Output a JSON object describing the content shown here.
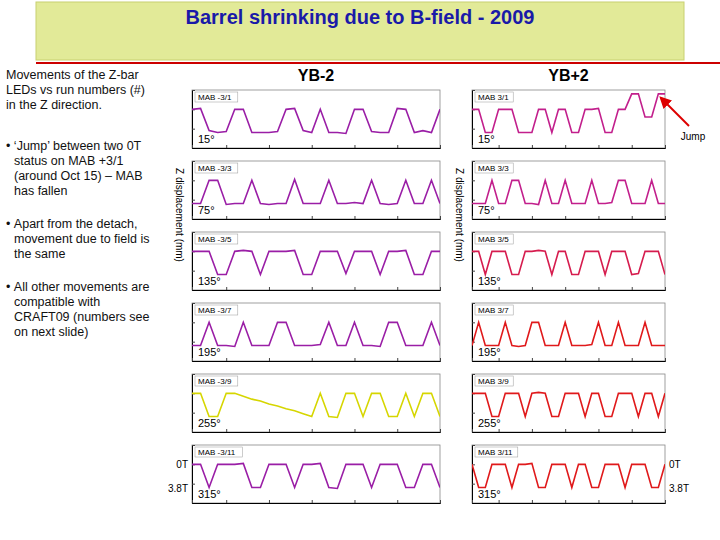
{
  "title": "Barrel shrinking due to B-field - 2009",
  "notes": {
    "intro": "Movements of the Z-bar LEDs vs run numbers (#) in the Z direction.",
    "bullets": [
      "‘Jump’ between two 0T status on MAB +3/1 (around Oct 15) – MAB has fallen",
      "Apart from the detach, movement due to field is the same",
      "All other movements are compatible with CRAFT09 (numbers see on next slide)"
    ]
  },
  "columns": [
    {
      "label": "YB-2",
      "ylabel": "Z displacement (mm)"
    },
    {
      "label": "YB+2",
      "ylabel": "Z displacement (mm)"
    }
  ],
  "field_levels": [
    {
      "value": 0,
      "label": "0T"
    },
    {
      "value": -1.2,
      "label": "3.8T"
    }
  ],
  "jump_label": "Jump",
  "chart_data": [
    {
      "type": "line",
      "title": "MAB -3/1",
      "annotation": "15°",
      "color": "#9a1ea6",
      "x": [
        1,
        2,
        3,
        4,
        5,
        6,
        7,
        8,
        9,
        10,
        11,
        12,
        13,
        14,
        15,
        16,
        17,
        18,
        19,
        20,
        21,
        22,
        23,
        24,
        25,
        26,
        27,
        28,
        29,
        30
      ],
      "values": [
        0,
        0.05,
        -1.1,
        -1.2,
        -1.15,
        0,
        0,
        -1.2,
        -1.2,
        -1.2,
        -1.15,
        0,
        0.05,
        -1.1,
        -1.2,
        0,
        -1.2,
        -1.2,
        -1.25,
        0,
        0,
        -1.15,
        -1.2,
        -1.2,
        0.05,
        0,
        -1.2,
        -1.1,
        -1.2,
        0
      ],
      "xlim": [
        1,
        30
      ],
      "ylim": [
        -2,
        1
      ],
      "xticks": [
        1,
        5,
        10,
        15,
        20,
        25,
        30
      ],
      "yticks": [
        -2,
        -1,
        0,
        1
      ],
      "tick_labels": false
    },
    {
      "type": "line",
      "title": "MAB -3/3",
      "annotation": "75°",
      "color": "#9a1ea6",
      "x": [
        1,
        2,
        3,
        4,
        5,
        6,
        7,
        8,
        9,
        10,
        11,
        12,
        13,
        14,
        15,
        16,
        17,
        18,
        19,
        20,
        21,
        22,
        23,
        24,
        25,
        26,
        27,
        28,
        29,
        30
      ],
      "values": [
        -1.2,
        -1.2,
        0,
        0,
        -1.25,
        -1.2,
        -1.2,
        0,
        -1.2,
        -1.25,
        -1.2,
        -1.2,
        0.05,
        -1.2,
        -1.2,
        -1.2,
        0,
        -1.2,
        -1.2,
        -1.15,
        -1.2,
        0,
        -1.2,
        -1.25,
        -1.2,
        0,
        -1.2,
        -1.2,
        0,
        -1.2
      ],
      "xlim": [
        1,
        30
      ],
      "ylim": [
        -2,
        1
      ],
      "xticks": [
        1,
        5,
        10,
        15,
        20,
        25,
        30
      ],
      "yticks": [
        -2,
        -1,
        0,
        1
      ],
      "tick_labels": false
    },
    {
      "type": "line",
      "title": "MAB -3/5",
      "annotation": "135°",
      "color": "#9a1ea6",
      "x": [
        1,
        2,
        3,
        4,
        5,
        6,
        7,
        8,
        9,
        10,
        11,
        12,
        13,
        14,
        15,
        16,
        17,
        18,
        19,
        20,
        21,
        22,
        23,
        24,
        25,
        26,
        27,
        28,
        29,
        30
      ],
      "values": [
        0,
        0,
        0,
        -1.2,
        -1.2,
        0,
        0.05,
        0,
        -1.2,
        0,
        0,
        0,
        0.05,
        -1.2,
        -1.2,
        0,
        0,
        0,
        -1.15,
        0,
        0,
        0,
        -1.2,
        0,
        0,
        0.05,
        -1.2,
        -1.2,
        0,
        0
      ],
      "xlim": [
        1,
        30
      ],
      "ylim": [
        -2,
        1
      ],
      "xticks": [
        1,
        5,
        10,
        15,
        20,
        25,
        30
      ],
      "yticks": [
        -2,
        -1,
        0,
        1
      ],
      "tick_labels": false
    },
    {
      "type": "line",
      "title": "MAB -3/7",
      "annotation": "195°",
      "color": "#9a1ea6",
      "x": [
        1,
        2,
        3,
        4,
        5,
        6,
        7,
        8,
        9,
        10,
        11,
        12,
        13,
        14,
        15,
        16,
        17,
        18,
        19,
        20,
        21,
        22,
        23,
        24,
        25,
        26,
        27,
        28,
        29,
        30
      ],
      "values": [
        -1.2,
        -1.2,
        0,
        -1.2,
        -1.2,
        -1.25,
        0,
        -1.2,
        -1.2,
        -1.2,
        0,
        0,
        -1.2,
        -1.2,
        -1.2,
        -1.15,
        0,
        -1.2,
        -1.2,
        0,
        -1.2,
        -1.2,
        -1.25,
        0,
        0,
        -1.2,
        -1.2,
        -1.2,
        0,
        -1.2
      ],
      "xlim": [
        1,
        30
      ],
      "ylim": [
        -2,
        1
      ],
      "xticks": [
        1,
        5,
        10,
        15,
        20,
        25,
        30
      ],
      "yticks": [
        -2,
        -1,
        0,
        1
      ],
      "tick_labels": false
    },
    {
      "type": "line",
      "title": "MAB -3/9",
      "annotation": "255°",
      "color": "#d6d600",
      "x": [
        1,
        2,
        3,
        4,
        5,
        6,
        7,
        8,
        9,
        10,
        11,
        12,
        13,
        14,
        15,
        16,
        17,
        18,
        19,
        20,
        21,
        22,
        23,
        24,
        25,
        26,
        27,
        28,
        29,
        30
      ],
      "values": [
        0,
        0,
        -1.2,
        -1.2,
        0,
        0,
        -0.15,
        -0.3,
        -0.4,
        -0.55,
        -0.65,
        -0.8,
        -0.9,
        -1.05,
        -1.2,
        0,
        -1.2,
        -1.25,
        0,
        0,
        -1.2,
        0,
        0,
        -1.2,
        -1.2,
        0,
        -1.2,
        0,
        0,
        -1.2
      ],
      "xlim": [
        1,
        30
      ],
      "ylim": [
        -2,
        1
      ],
      "xticks": [
        1,
        5,
        10,
        15,
        20,
        25,
        30
      ],
      "yticks": [
        -2,
        -1,
        0,
        1
      ],
      "tick_labels": false
    },
    {
      "type": "line",
      "title": "MAB -3/11",
      "annotation": "315°",
      "color": "#9a1ea6",
      "x": [
        1,
        2,
        3,
        4,
        5,
        6,
        7,
        8,
        9,
        10,
        11,
        12,
        13,
        14,
        15,
        16,
        17,
        18,
        19,
        20,
        21,
        22,
        23,
        24,
        25,
        26,
        27,
        28,
        29,
        30
      ],
      "values": [
        0,
        0,
        -1.2,
        0,
        0,
        0,
        0.05,
        -1.2,
        -1.2,
        0,
        0,
        0,
        -1.2,
        0,
        0,
        0.05,
        -1.2,
        -1.25,
        0,
        0,
        0,
        -1.2,
        0,
        0,
        0,
        -1.2,
        -1.2,
        0,
        0,
        -1.2
      ],
      "xlim": [
        1,
        30
      ],
      "ylim": [
        -2,
        1
      ],
      "xticks": [
        1,
        5,
        10,
        15,
        20,
        25,
        30
      ],
      "yticks": [
        -2,
        -1,
        0,
        1
      ],
      "tick_labels": false
    },
    {
      "type": "line",
      "title": "MAB 3/1",
      "annotation": "15°",
      "color": "#c21f8c",
      "x": [
        1,
        2,
        3,
        4,
        5,
        6,
        7,
        8,
        9,
        10,
        11,
        12,
        13,
        14,
        15,
        16,
        17,
        18,
        19,
        20,
        21,
        22,
        23,
        24,
        25,
        26,
        27,
        28,
        29,
        30
      ],
      "values": [
        0,
        0,
        -1.2,
        -1.2,
        0,
        0,
        0,
        -1.2,
        -1.2,
        -1.2,
        0,
        0,
        -1.2,
        0,
        0,
        -1.2,
        -1.2,
        0,
        0,
        0.05,
        -1.2,
        -1.2,
        0,
        0,
        0.8,
        0.8,
        -0.4,
        -0.4,
        0.8,
        0.8
      ],
      "xlim": [
        1,
        30
      ],
      "ylim": [
        -2,
        1
      ],
      "xticks": [
        1,
        5,
        10,
        15,
        20,
        25,
        30
      ],
      "yticks": [
        -2,
        -1,
        0,
        1
      ],
      "tick_labels": false
    },
    {
      "type": "line",
      "title": "MAB 3/3",
      "annotation": "75°",
      "color": "#c21f8c",
      "x": [
        1,
        2,
        3,
        4,
        5,
        6,
        7,
        8,
        9,
        10,
        11,
        12,
        13,
        14,
        15,
        16,
        17,
        18,
        19,
        20,
        21,
        22,
        23,
        24,
        25,
        26,
        27,
        28,
        29,
        30
      ],
      "values": [
        -1.2,
        -1.2,
        -1.2,
        0,
        -1.2,
        -1.2,
        0,
        0,
        -1.2,
        -1.2,
        -1.25,
        0,
        -1.2,
        -1.2,
        0,
        -1.2,
        -1.2,
        -1.2,
        0,
        -1.2,
        -1.2,
        -1.15,
        0,
        0,
        -1.2,
        -1.2,
        -1.2,
        0,
        -1.2,
        -1.2
      ],
      "xlim": [
        1,
        30
      ],
      "ylim": [
        -2,
        1
      ],
      "xticks": [
        1,
        5,
        10,
        15,
        20,
        25,
        30
      ],
      "yticks": [
        -2,
        -1,
        0,
        1
      ],
      "tick_labels": false
    },
    {
      "type": "line",
      "title": "MAB 3/5",
      "annotation": "135°",
      "color": "#d61c4e",
      "x": [
        1,
        2,
        3,
        4,
        5,
        6,
        7,
        8,
        9,
        10,
        11,
        12,
        13,
        14,
        15,
        16,
        17,
        18,
        19,
        20,
        21,
        22,
        23,
        24,
        25,
        26,
        27,
        28,
        29,
        30
      ],
      "values": [
        0,
        0,
        -1.2,
        0,
        0,
        0,
        -1.2,
        -1.2,
        0,
        0,
        0.05,
        0,
        -1.2,
        0,
        0,
        -1.2,
        -1.2,
        0,
        0,
        0,
        -1.2,
        0,
        0,
        0,
        -1.2,
        -1.15,
        0,
        0,
        0,
        -1.2
      ],
      "xlim": [
        1,
        30
      ],
      "ylim": [
        -2,
        1
      ],
      "xticks": [
        1,
        5,
        10,
        15,
        20,
        25,
        30
      ],
      "yticks": [
        -2,
        -1,
        0,
        1
      ],
      "tick_labels": false
    },
    {
      "type": "line",
      "title": "MAB 3/7",
      "annotation": "195°",
      "color": "#e0191b",
      "x": [
        1,
        2,
        3,
        4,
        5,
        6,
        7,
        8,
        9,
        10,
        11,
        12,
        13,
        14,
        15,
        16,
        17,
        18,
        19,
        20,
        21,
        22,
        23,
        24,
        25,
        26,
        27,
        28,
        29,
        30
      ],
      "values": [
        -1.2,
        0,
        -1.2,
        -1.2,
        -1.2,
        0,
        -1.2,
        -1.25,
        -1.2,
        0,
        0,
        -1.2,
        -1.2,
        -1.2,
        0,
        -1.2,
        -1.2,
        -1.2,
        -1.15,
        0,
        -1.2,
        -1.2,
        0,
        -1.2,
        -1.2,
        -1.2,
        0,
        -1.2,
        -1.2,
        -1.2
      ],
      "xlim": [
        1,
        30
      ],
      "ylim": [
        -2,
        1
      ],
      "xticks": [
        1,
        5,
        10,
        15,
        20,
        25,
        30
      ],
      "yticks": [
        -2,
        -1,
        0,
        1
      ],
      "tick_labels": false
    },
    {
      "type": "line",
      "title": "MAB 3/9",
      "annotation": "255°",
      "color": "#e0191b",
      "x": [
        1,
        2,
        3,
        4,
        5,
        6,
        7,
        8,
        9,
        10,
        11,
        12,
        13,
        14,
        15,
        16,
        17,
        18,
        19,
        20,
        21,
        22,
        23,
        24,
        25,
        26,
        27,
        28,
        29,
        30
      ],
      "values": [
        0,
        0,
        0,
        -1.2,
        -1.2,
        0,
        0,
        0,
        -1.2,
        0,
        0.05,
        0,
        -1.2,
        -1.2,
        0,
        0,
        0,
        -1.2,
        0,
        0,
        -1.2,
        -1.2,
        0,
        0,
        0,
        -1.2,
        0,
        0,
        -1.2,
        0
      ],
      "xlim": [
        1,
        30
      ],
      "ylim": [
        -2,
        1
      ],
      "xticks": [
        1,
        5,
        10,
        15,
        20,
        25,
        30
      ],
      "yticks": [
        -2,
        -1,
        0,
        1
      ],
      "tick_labels": false
    },
    {
      "type": "line",
      "title": "MAB 3/11",
      "annotation": "315°",
      "color": "#e0191b",
      "x": [
        1,
        2,
        3,
        4,
        5,
        6,
        7,
        8,
        9,
        10,
        11,
        12,
        13,
        14,
        15,
        16,
        17,
        18,
        19,
        20,
        21,
        22,
        23,
        24,
        25,
        26,
        27,
        28,
        29,
        30
      ],
      "values": [
        0,
        -1.2,
        -1.2,
        0,
        0,
        0,
        -1.2,
        0,
        0,
        0.05,
        -1.2,
        -1.2,
        0,
        0,
        0,
        -1.2,
        0,
        0,
        -1.2,
        -1.2,
        0,
        0,
        0,
        -1.2,
        0,
        0,
        0,
        -1.2,
        -1.2,
        0
      ],
      "xlim": [
        1,
        30
      ],
      "ylim": [
        -2,
        1
      ],
      "xticks": [
        1,
        5,
        10,
        15,
        20,
        25,
        30
      ],
      "yticks": [
        -2,
        -1,
        0,
        1
      ],
      "tick_labels": false
    }
  ]
}
